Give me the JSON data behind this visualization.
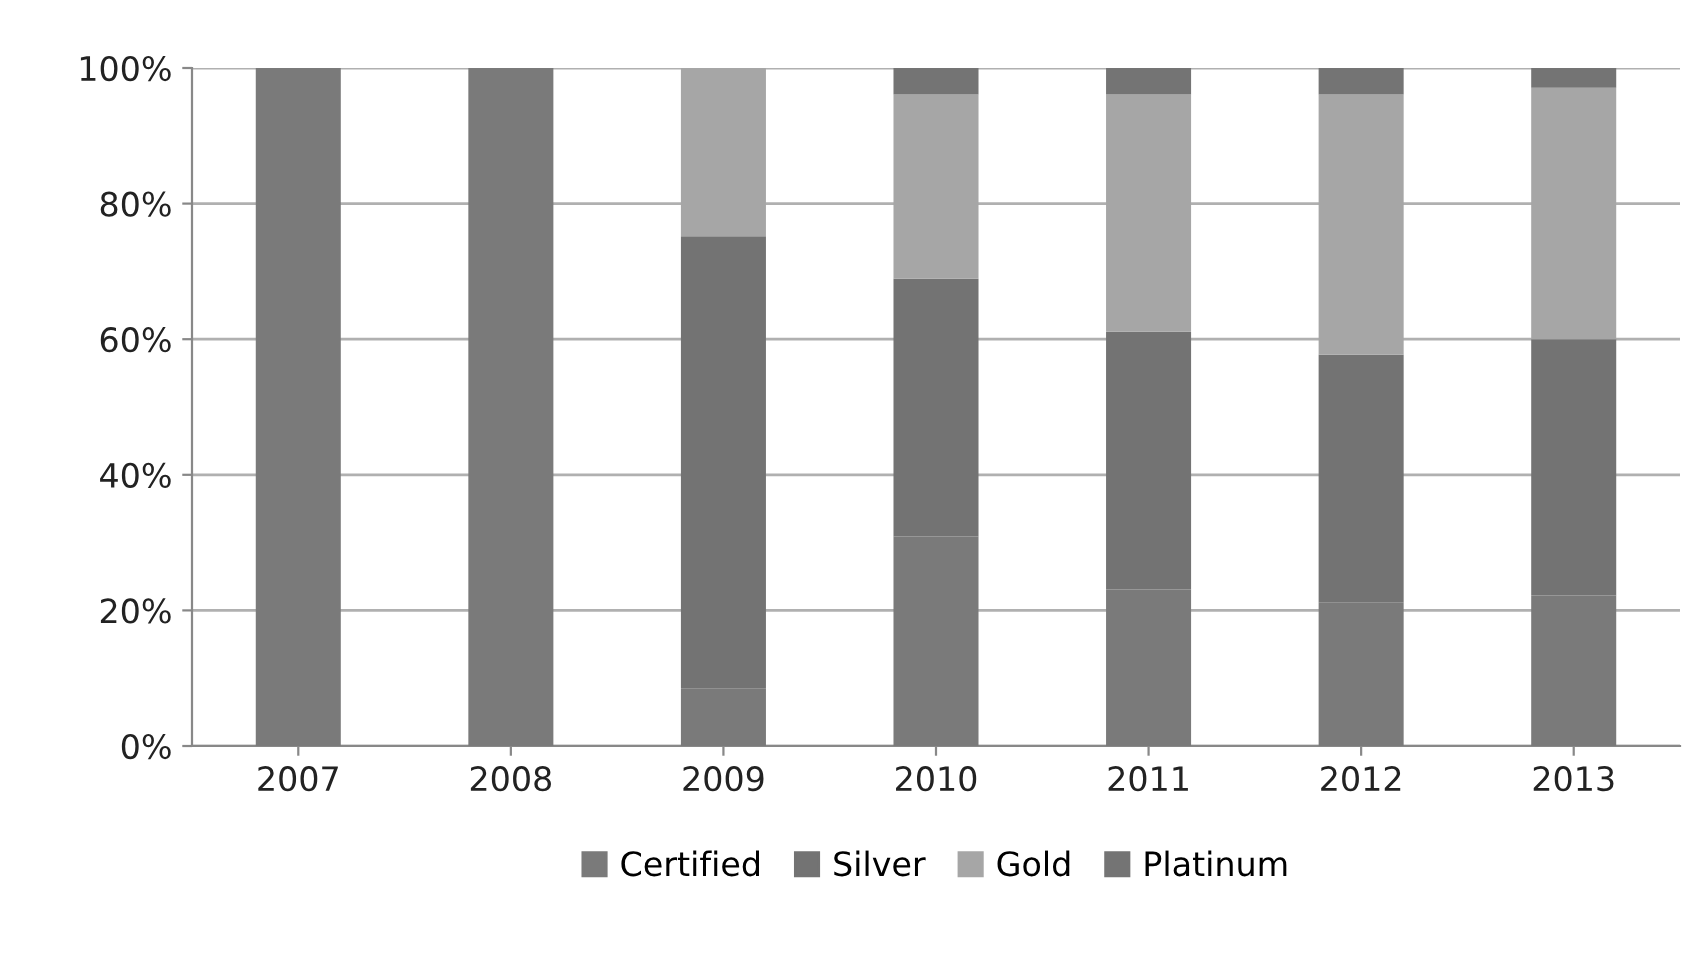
{
  "chart_data": {
    "type": "bar",
    "stacked": true,
    "categories": [
      "2007",
      "2008",
      "2009",
      "2010",
      "2011",
      "2012",
      "2013"
    ],
    "series": [
      {
        "name": "Certified",
        "color": "#7a7a7a",
        "values": [
          100,
          100,
          8.5,
          30.9,
          23.1,
          21.2,
          22.2
        ]
      },
      {
        "name": "Silver",
        "color": "#737373",
        "values": [
          0,
          0,
          66.7,
          38.0,
          38.0,
          36.5,
          37.8
        ]
      },
      {
        "name": "Gold",
        "color": "#a6a6a6",
        "values": [
          0,
          0,
          24.8,
          27.2,
          35.0,
          38.4,
          37.1
        ]
      },
      {
        "name": "Platinum",
        "color": "#747474",
        "values": [
          0,
          0,
          0,
          3.9,
          3.9,
          3.9,
          2.9
        ]
      }
    ],
    "ylim": [
      0,
      100
    ],
    "yticks": [
      {
        "value": 0,
        "label": "0%"
      },
      {
        "value": 20,
        "label": "20%"
      },
      {
        "value": 40,
        "label": "40%"
      },
      {
        "value": 60,
        "label": "60%"
      },
      {
        "value": 80,
        "label": "80%"
      },
      {
        "value": 100,
        "label": "100%"
      }
    ],
    "grid": "y",
    "legend": "bottom"
  }
}
